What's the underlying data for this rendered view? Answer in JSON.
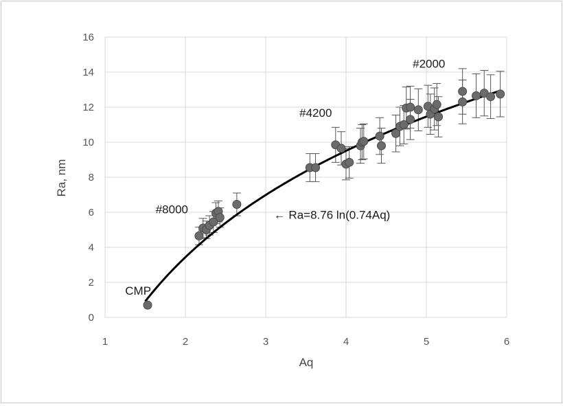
{
  "chart_data": {
    "type": "scatter",
    "xlabel": "Aq",
    "ylabel": "Ra, nm",
    "xlim": [
      1,
      6
    ],
    "ylim": [
      0,
      16
    ],
    "xticks": [
      1,
      2,
      3,
      4,
      5,
      6
    ],
    "yticks": [
      0,
      2,
      4,
      6,
      8,
      10,
      12,
      14,
      16
    ],
    "grid": true,
    "legend": "none",
    "marker_color": "#6b6b6b",
    "fit_color": "#000000",
    "errorbar_color": "#555555",
    "fit": {
      "label": "← Ra=8.76 ln(0.74Aq)",
      "a": 8.76,
      "b": 0.74,
      "x_start": 1.5,
      "x_end": 5.9
    },
    "annotations": [
      {
        "text": "CMP",
        "x": 1.25,
        "y": 1.3
      },
      {
        "text": "#8000",
        "x": 1.63,
        "y": 5.95
      },
      {
        "text": "#4200",
        "x": 3.42,
        "y": 11.45
      },
      {
        "text": "#2000",
        "x": 4.83,
        "y": 14.25
      }
    ],
    "points": [
      {
        "x": 1.53,
        "y": 0.7,
        "err": 0.0
      },
      {
        "x": 2.17,
        "y": 4.65,
        "err": 0.5
      },
      {
        "x": 2.22,
        "y": 5.1,
        "err": 0.55
      },
      {
        "x": 2.26,
        "y": 5.0,
        "err": 0.5
      },
      {
        "x": 2.3,
        "y": 5.25,
        "err": 0.55
      },
      {
        "x": 2.35,
        "y": 5.45,
        "err": 0.6
      },
      {
        "x": 2.38,
        "y": 5.95,
        "err": 0.6
      },
      {
        "x": 2.41,
        "y": 6.05,
        "err": 0.6
      },
      {
        "x": 2.43,
        "y": 5.7,
        "err": 0.55
      },
      {
        "x": 2.64,
        "y": 6.45,
        "err": 0.65
      },
      {
        "x": 3.55,
        "y": 8.55,
        "err": 0.8
      },
      {
        "x": 3.62,
        "y": 8.55,
        "err": 0.8
      },
      {
        "x": 3.87,
        "y": 9.85,
        "err": 1.0
      },
      {
        "x": 3.94,
        "y": 9.65,
        "err": 0.95
      },
      {
        "x": 4.0,
        "y": 8.75,
        "err": 0.9
      },
      {
        "x": 4.04,
        "y": 8.85,
        "err": 0.9
      },
      {
        "x": 4.18,
        "y": 9.8,
        "err": 1.0
      },
      {
        "x": 4.2,
        "y": 10.0,
        "err": 1.0
      },
      {
        "x": 4.22,
        "y": 10.05,
        "err": 1.0
      },
      {
        "x": 4.42,
        "y": 10.35,
        "err": 1.05
      },
      {
        "x": 4.44,
        "y": 9.8,
        "err": 1.0
      },
      {
        "x": 4.62,
        "y": 10.5,
        "err": 1.05
      },
      {
        "x": 4.67,
        "y": 10.9,
        "err": 1.1
      },
      {
        "x": 4.72,
        "y": 11.0,
        "err": 1.1
      },
      {
        "x": 4.75,
        "y": 11.95,
        "err": 1.2
      },
      {
        "x": 4.8,
        "y": 12.0,
        "err": 1.2
      },
      {
        "x": 4.8,
        "y": 11.3,
        "err": 1.15
      },
      {
        "x": 4.9,
        "y": 11.85,
        "err": 1.2
      },
      {
        "x": 5.02,
        "y": 12.05,
        "err": 1.2
      },
      {
        "x": 5.05,
        "y": 11.6,
        "err": 1.15
      },
      {
        "x": 5.1,
        "y": 11.9,
        "err": 1.2
      },
      {
        "x": 5.13,
        "y": 12.15,
        "err": 1.2
      },
      {
        "x": 5.15,
        "y": 11.45,
        "err": 1.15
      },
      {
        "x": 5.45,
        "y": 12.9,
        "err": 1.3
      },
      {
        "x": 5.45,
        "y": 12.3,
        "err": 1.25
      },
      {
        "x": 5.62,
        "y": 12.65,
        "err": 1.25
      },
      {
        "x": 5.72,
        "y": 12.8,
        "err": 1.3
      },
      {
        "x": 5.8,
        "y": 12.6,
        "err": 1.25
      },
      {
        "x": 5.92,
        "y": 12.75,
        "err": 1.3
      }
    ]
  }
}
